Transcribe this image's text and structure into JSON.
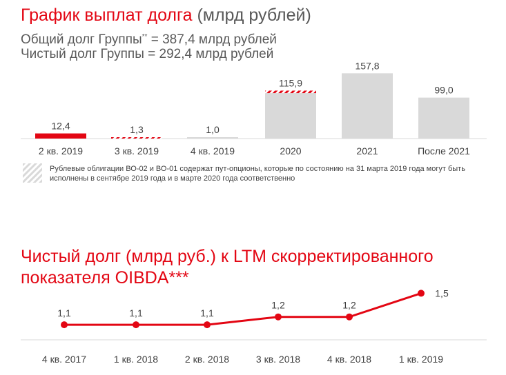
{
  "header": {
    "title_main": "График выплат долга",
    "title_units": " (млрд рублей)",
    "total_debt_prefix": "Общий долг Группы",
    "total_debt_sup": "**",
    "total_debt_suffix": " = 387,4 млрд рублей",
    "net_debt_line": "Чистый долг Группы = 292,4 млрд рублей"
  },
  "note": {
    "text": "Рублевые облигации ВО-02 и ВО-01 содержат пут-опционы, которые по состоянию на 31 марта 2019 года могут быть исполнены в сентябре 2019 года и в марте 2020 года соответственно"
  },
  "section2": {
    "title": "Чистый долг (млрд руб.) к LTM скорректированного показателя OIBDA***"
  },
  "colors": {
    "accent": "#e30613",
    "bar_gray": "#d9d9d9",
    "text": "#404040"
  },
  "chart_data": [
    {
      "type": "bar",
      "categories": [
        "2 кв. 2019",
        "3 кв. 2019",
        "4 кв. 2019",
        "2020",
        "2021",
        "После 2021"
      ],
      "values": [
        12.4,
        1.3,
        1.0,
        115.9,
        157.8,
        99.0
      ],
      "labels": [
        "12,4",
        "1,3",
        "1,0",
        "115,9",
        "157,8",
        "99,0"
      ],
      "bar_styles": [
        "solid-red",
        "hatched",
        "gray",
        "gray-hatched-top",
        "gray",
        "gray"
      ],
      "hatched_portion": [
        0,
        1.3,
        0,
        6,
        0,
        0
      ],
      "ylim": [
        0,
        160
      ]
    },
    {
      "type": "line",
      "categories": [
        "4 кв. 2017",
        "1 кв. 2018",
        "2 кв. 2018",
        "3 кв. 2018",
        "4 кв. 2018",
        "1 кв. 2019"
      ],
      "values": [
        1.1,
        1.1,
        1.1,
        1.2,
        1.2,
        1.5
      ],
      "labels": [
        "1,1",
        "1,1",
        "1,1",
        "1,2",
        "1,2",
        "1,5"
      ],
      "ylim": [
        0.9,
        1.6
      ]
    }
  ]
}
